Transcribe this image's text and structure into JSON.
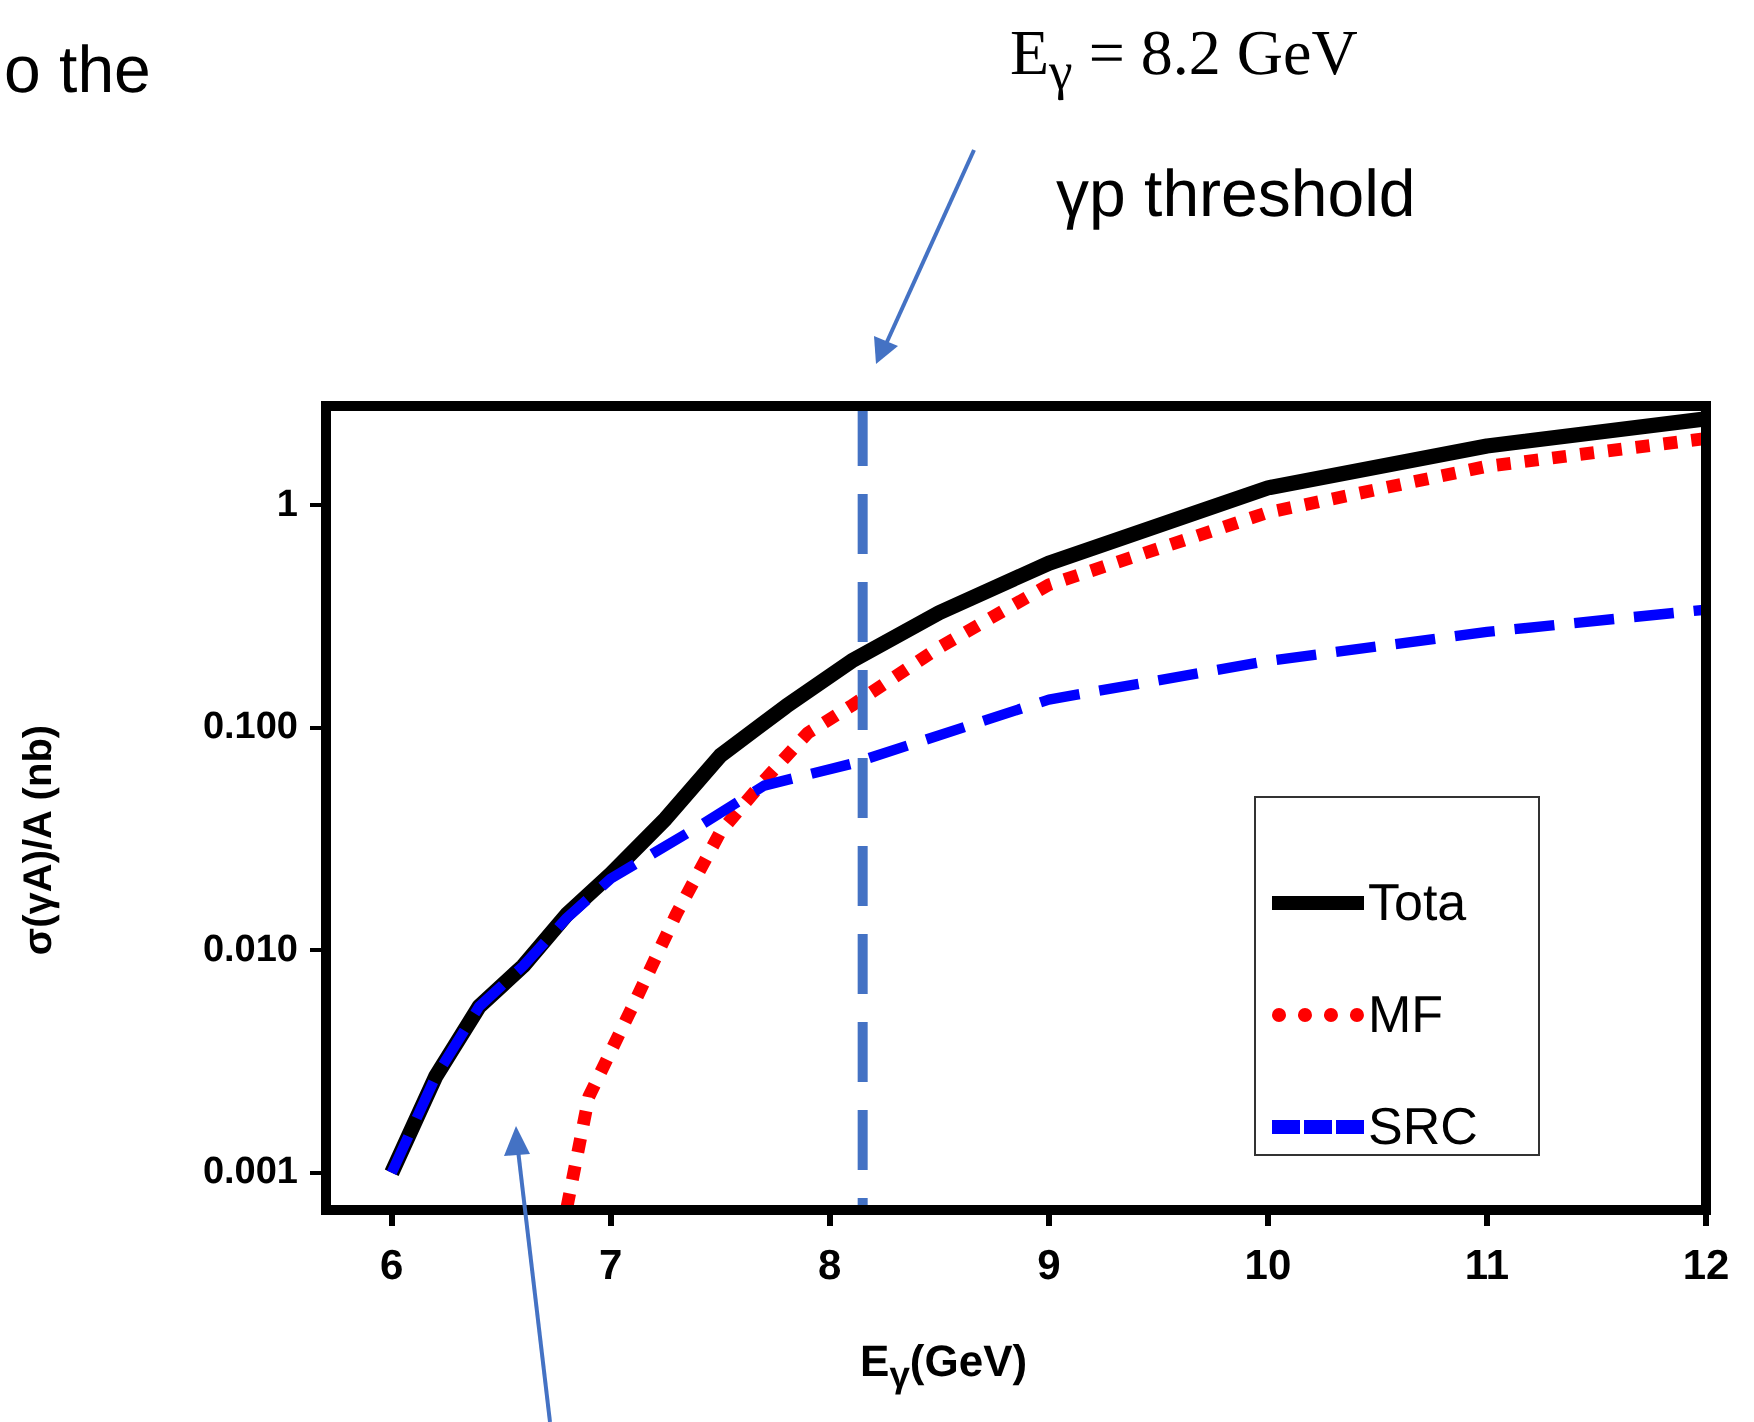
{
  "chart_data": {
    "type": "line",
    "xlabel": "E$_{γ}$(GeV)",
    "ylabel": "σ(γA)/A (nb)",
    "log": "y",
    "xlim": [
      5.7,
      12
    ],
    "xticks": [
      6,
      7,
      8,
      9,
      10,
      11,
      12
    ],
    "ylim": [
      0.00068,
      2.8
    ],
    "yticks": [
      {
        "value": 0.001,
        "label": "0.001"
      },
      {
        "value": 0.01,
        "label": "0.010"
      },
      {
        "value": 0.1,
        "label": "0.100"
      },
      {
        "value": 1,
        "label": "1"
      }
    ],
    "grid": false,
    "legend": "bottom right",
    "marker": "none",
    "series": [
      {
        "name": "Tota",
        "color": "#000000",
        "line_style": "solid",
        "x": [
          6,
          6.2,
          6.4,
          6.6,
          6.8,
          7,
          7.25,
          7.5,
          7.8,
          8.1,
          8.5,
          9,
          10,
          11,
          12
        ],
        "values": [
          0.001,
          0.0027,
          0.0056,
          0.0085,
          0.0145,
          0.022,
          0.039,
          0.075,
          0.125,
          0.2,
          0.33,
          0.55,
          1.2,
          1.85,
          2.45
        ]
      },
      {
        "name": "MF",
        "color": "#ff0000",
        "line_style": "dotted",
        "x": [
          6.8,
          6.9,
          7.1,
          7.3,
          7.5,
          7.7,
          7.9,
          8.1,
          8.5,
          9,
          10,
          11,
          12
        ],
        "values": [
          0.0007,
          0.0022,
          0.0056,
          0.0146,
          0.034,
          0.058,
          0.095,
          0.126,
          0.23,
          0.44,
          0.93,
          1.5,
          2.0
        ]
      },
      {
        "name": "SRC",
        "color": "#0000ff",
        "line_style": "dashed",
        "x": [
          6,
          6.2,
          6.4,
          6.6,
          6.8,
          7,
          7.4,
          7.7,
          8.1,
          9,
          10,
          11,
          12
        ],
        "values": [
          0.001,
          0.0027,
          0.0056,
          0.0085,
          0.014,
          0.021,
          0.036,
          0.055,
          0.069,
          0.134,
          0.2,
          0.27,
          0.34
        ]
      }
    ],
    "ref_lines": [
      {
        "axis": "x",
        "value": 8.15,
        "color": "#4472c4",
        "line_style": "dashed"
      }
    ],
    "annotations": [
      "o the",
      "E$_{γ}$ = 8.2 GeV",
      "γp threshold"
    ]
  }
}
